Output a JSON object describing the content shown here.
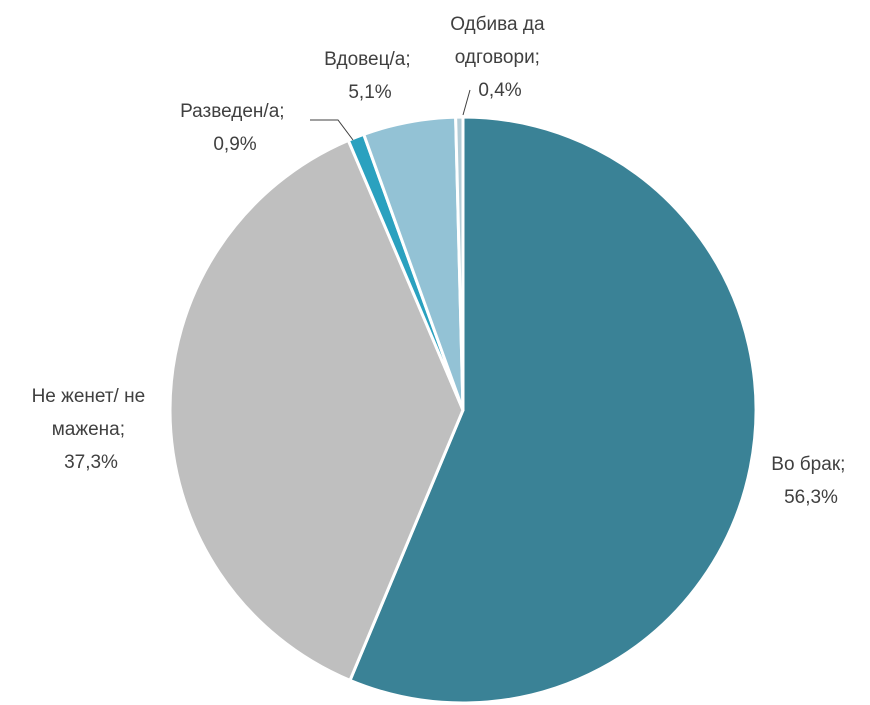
{
  "chart_data": {
    "type": "pie",
    "title": "",
    "slices": [
      {
        "name": "Во брак",
        "value": 56.3,
        "label_line1": "Во брак;",
        "label_line2": "56,3%",
        "color": "#3a8296"
      },
      {
        "name": "Не женет/ не мажена",
        "value": 37.3,
        "label_line1": "Не женет/ не",
        "label_line2": "мажена;",
        "label_line3": "37,3%",
        "color": "#bfbfbf"
      },
      {
        "name": "Разведен/а",
        "value": 0.9,
        "label_line1": "Разведен/а;",
        "label_line2": "0,9%",
        "color": "#2aa1bf"
      },
      {
        "name": "Вдовец/а",
        "value": 5.1,
        "label_line1": "Вдовец/а;",
        "label_line2": "5,1%",
        "color": "#93c2d5"
      },
      {
        "name": "Одбива да одговори",
        "value": 0.4,
        "label_line1": "Одбива да",
        "label_line2": "одговори;",
        "label_line3": "0,4%",
        "color": "#b3ccd6"
      }
    ],
    "legend": "none",
    "data_labels": "outside"
  }
}
